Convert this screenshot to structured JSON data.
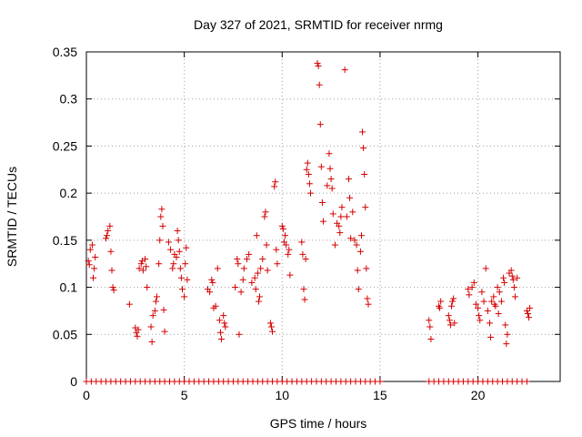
{
  "chart_data": {
    "type": "scatter",
    "title": "Day 327 of 2021, SRMTID for receiver nrmg",
    "xlabel": "GPS time / hours",
    "ylabel": "SRMTID / TECUs",
    "xlim": [
      0,
      24.2
    ],
    "ylim": [
      0,
      0.35
    ],
    "x_ticks": [
      0,
      5,
      10,
      15,
      20
    ],
    "x_tick_labels": [
      "0",
      "5",
      "10",
      "15",
      "20"
    ],
    "y_ticks": [
      0,
      0.05,
      0.1,
      0.15,
      0.2,
      0.25,
      0.3,
      0.35
    ],
    "y_tick_labels": [
      "0",
      "0.05",
      "0.1",
      "0.15",
      "0.2",
      "0.25",
      "0.3",
      "0.35"
    ],
    "grid": true,
    "marker": "+",
    "color": "#d40000",
    "zero_segments": [
      {
        "start": 0.0,
        "end": 15.1,
        "step": 0.25
      },
      {
        "start": 17.5,
        "end": 22.6,
        "step": 0.25
      }
    ],
    "series": [
      {
        "name": "SRMTID",
        "points": [
          [
            0.1,
            0.128
          ],
          [
            0.15,
            0.124
          ],
          [
            0.2,
            0.14
          ],
          [
            0.3,
            0.145
          ],
          [
            0.35,
            0.11
          ],
          [
            0.4,
            0.12
          ],
          [
            0.45,
            0.132
          ],
          [
            1.0,
            0.152
          ],
          [
            1.05,
            0.155
          ],
          [
            1.1,
            0.16
          ],
          [
            1.2,
            0.165
          ],
          [
            1.25,
            0.138
          ],
          [
            1.3,
            0.118
          ],
          [
            1.35,
            0.1
          ],
          [
            1.4,
            0.097
          ],
          [
            2.2,
            0.082
          ],
          [
            2.5,
            0.057
          ],
          [
            2.55,
            0.052
          ],
          [
            2.6,
            0.048
          ],
          [
            2.65,
            0.055
          ],
          [
            2.7,
            0.12
          ],
          [
            2.8,
            0.125
          ],
          [
            2.85,
            0.128
          ],
          [
            2.9,
            0.118
          ],
          [
            3.0,
            0.13
          ],
          [
            3.05,
            0.122
          ],
          [
            3.1,
            0.1
          ],
          [
            3.3,
            0.058
          ],
          [
            3.35,
            0.042
          ],
          [
            3.4,
            0.07
          ],
          [
            3.5,
            0.075
          ],
          [
            3.55,
            0.085
          ],
          [
            3.6,
            0.09
          ],
          [
            3.7,
            0.125
          ],
          [
            3.75,
            0.15
          ],
          [
            3.8,
            0.175
          ],
          [
            3.85,
            0.183
          ],
          [
            3.9,
            0.165
          ],
          [
            3.95,
            0.076
          ],
          [
            4.0,
            0.053
          ],
          [
            4.2,
            0.148
          ],
          [
            4.3,
            0.14
          ],
          [
            4.4,
            0.12
          ],
          [
            4.45,
            0.125
          ],
          [
            4.5,
            0.135
          ],
          [
            4.6,
            0.132
          ],
          [
            4.65,
            0.16
          ],
          [
            4.7,
            0.15
          ],
          [
            4.75,
            0.138
          ],
          [
            4.8,
            0.12
          ],
          [
            4.85,
            0.11
          ],
          [
            4.9,
            0.098
          ],
          [
            5.0,
            0.09
          ],
          [
            5.05,
            0.125
          ],
          [
            5.1,
            0.142
          ],
          [
            5.15,
            0.108
          ],
          [
            6.2,
            0.098
          ],
          [
            6.3,
            0.095
          ],
          [
            6.4,
            0.108
          ],
          [
            6.45,
            0.105
          ],
          [
            6.5,
            0.078
          ],
          [
            6.6,
            0.08
          ],
          [
            6.7,
            0.12
          ],
          [
            6.8,
            0.065
          ],
          [
            6.85,
            0.052
          ],
          [
            6.9,
            0.045
          ],
          [
            7.0,
            0.07
          ],
          [
            7.05,
            0.062
          ],
          [
            7.1,
            0.058
          ],
          [
            7.6,
            0.1
          ],
          [
            7.7,
            0.13
          ],
          [
            7.75,
            0.125
          ],
          [
            7.8,
            0.05
          ],
          [
            7.9,
            0.095
          ],
          [
            8.0,
            0.108
          ],
          [
            8.05,
            0.12
          ],
          [
            8.2,
            0.13
          ],
          [
            8.3,
            0.135
          ],
          [
            8.45,
            0.105
          ],
          [
            8.6,
            0.11
          ],
          [
            8.65,
            0.098
          ],
          [
            8.7,
            0.155
          ],
          [
            8.75,
            0.115
          ],
          [
            8.8,
            0.085
          ],
          [
            8.85,
            0.09
          ],
          [
            8.9,
            0.12
          ],
          [
            9.0,
            0.13
          ],
          [
            9.1,
            0.175
          ],
          [
            9.15,
            0.18
          ],
          [
            9.2,
            0.145
          ],
          [
            9.25,
            0.118
          ],
          [
            9.4,
            0.062
          ],
          [
            9.45,
            0.058
          ],
          [
            9.5,
            0.053
          ],
          [
            9.6,
            0.207
          ],
          [
            9.65,
            0.212
          ],
          [
            9.7,
            0.14
          ],
          [
            9.75,
            0.125
          ],
          [
            10.0,
            0.165
          ],
          [
            10.05,
            0.162
          ],
          [
            10.1,
            0.148
          ],
          [
            10.15,
            0.155
          ],
          [
            10.2,
            0.145
          ],
          [
            10.3,
            0.135
          ],
          [
            10.35,
            0.14
          ],
          [
            10.4,
            0.113
          ],
          [
            11.0,
            0.148
          ],
          [
            11.05,
            0.135
          ],
          [
            11.1,
            0.098
          ],
          [
            11.15,
            0.087
          ],
          [
            11.2,
            0.13
          ],
          [
            11.25,
            0.225
          ],
          [
            11.3,
            0.232
          ],
          [
            11.35,
            0.22
          ],
          [
            11.4,
            0.21
          ],
          [
            11.45,
            0.2
          ],
          [
            11.8,
            0.338
          ],
          [
            11.85,
            0.335
          ],
          [
            11.9,
            0.315
          ],
          [
            11.95,
            0.273
          ],
          [
            12.0,
            0.228
          ],
          [
            12.05,
            0.19
          ],
          [
            12.1,
            0.17
          ],
          [
            12.3,
            0.208
          ],
          [
            12.4,
            0.242
          ],
          [
            12.45,
            0.226
          ],
          [
            12.5,
            0.215
          ],
          [
            12.55,
            0.205
          ],
          [
            12.6,
            0.178
          ],
          [
            12.7,
            0.145
          ],
          [
            12.8,
            0.168
          ],
          [
            12.9,
            0.165
          ],
          [
            12.95,
            0.158
          ],
          [
            13.0,
            0.175
          ],
          [
            13.05,
            0.185
          ],
          [
            13.2,
            0.331
          ],
          [
            13.3,
            0.175
          ],
          [
            13.4,
            0.215
          ],
          [
            13.45,
            0.195
          ],
          [
            13.5,
            0.152
          ],
          [
            13.6,
            0.18
          ],
          [
            13.7,
            0.15
          ],
          [
            13.8,
            0.145
          ],
          [
            13.85,
            0.118
          ],
          [
            13.9,
            0.098
          ],
          [
            14.0,
            0.138
          ],
          [
            14.05,
            0.155
          ],
          [
            14.1,
            0.265
          ],
          [
            14.15,
            0.248
          ],
          [
            14.2,
            0.22
          ],
          [
            14.25,
            0.185
          ],
          [
            14.3,
            0.12
          ],
          [
            14.35,
            0.088
          ],
          [
            14.4,
            0.082
          ],
          [
            17.5,
            0.065
          ],
          [
            17.55,
            0.058
          ],
          [
            17.6,
            0.045
          ],
          [
            18.0,
            0.08
          ],
          [
            18.05,
            0.078
          ],
          [
            18.1,
            0.085
          ],
          [
            18.5,
            0.07
          ],
          [
            18.55,
            0.065
          ],
          [
            18.6,
            0.06
          ],
          [
            18.65,
            0.08
          ],
          [
            18.7,
            0.085
          ],
          [
            18.75,
            0.088
          ],
          [
            18.8,
            0.062
          ],
          [
            19.5,
            0.098
          ],
          [
            19.55,
            0.092
          ],
          [
            19.7,
            0.1
          ],
          [
            19.8,
            0.105
          ],
          [
            19.9,
            0.082
          ],
          [
            20.0,
            0.078
          ],
          [
            20.05,
            0.07
          ],
          [
            20.1,
            0.065
          ],
          [
            20.2,
            0.095
          ],
          [
            20.3,
            0.085
          ],
          [
            20.4,
            0.12
          ],
          [
            20.5,
            0.075
          ],
          [
            20.6,
            0.062
          ],
          [
            20.65,
            0.047
          ],
          [
            20.7,
            0.085
          ],
          [
            20.8,
            0.09
          ],
          [
            20.85,
            0.082
          ],
          [
            20.9,
            0.08
          ],
          [
            21.0,
            0.1
          ],
          [
            21.05,
            0.072
          ],
          [
            21.1,
            0.095
          ],
          [
            21.2,
            0.085
          ],
          [
            21.3,
            0.11
          ],
          [
            21.35,
            0.105
          ],
          [
            21.4,
            0.06
          ],
          [
            21.45,
            0.04
          ],
          [
            21.5,
            0.05
          ],
          [
            21.6,
            0.115
          ],
          [
            21.7,
            0.118
          ],
          [
            21.75,
            0.112
          ],
          [
            21.8,
            0.108
          ],
          [
            21.85,
            0.1
          ],
          [
            21.9,
            0.09
          ],
          [
            22.0,
            0.11
          ],
          [
            22.5,
            0.075
          ],
          [
            22.55,
            0.072
          ],
          [
            22.6,
            0.068
          ],
          [
            22.65,
            0.078
          ]
        ]
      }
    ]
  }
}
